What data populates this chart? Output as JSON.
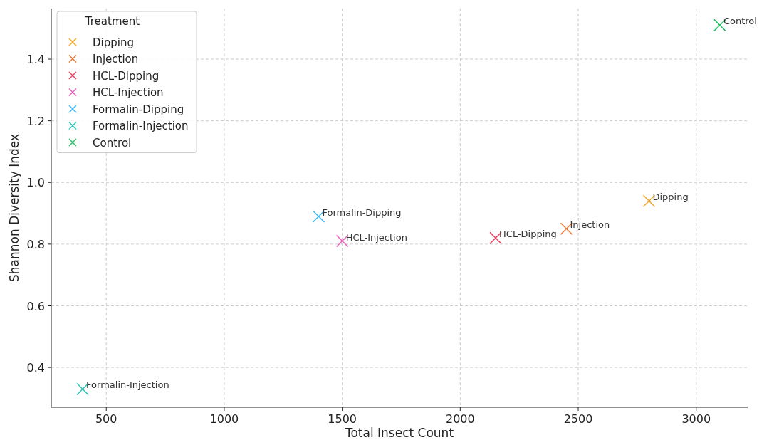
{
  "chart_data": {
    "type": "scatter",
    "xlabel": "Total Insect Count",
    "ylabel": "Shannon Diversity Index",
    "legend_title": "Treatment",
    "legend": "top left",
    "grid": true,
    "marker": "cross",
    "xlim": [
      267,
      3218
    ],
    "xticks": [
      500,
      1000,
      1500,
      2000,
      2500,
      3000
    ],
    "ylim": [
      0.271,
      1.564
    ],
    "yticks": [
      0.4,
      0.6,
      0.8,
      {
        "value": 1,
        "label": "1.0"
      },
      1.2,
      1.4
    ],
    "series": [
      {
        "name": "Dipping",
        "color": "#f5a623",
        "x": [
          2800
        ],
        "values": [
          0.94
        ]
      },
      {
        "name": "Injection",
        "color": "#f07838",
        "x": [
          2450
        ],
        "values": [
          0.85
        ]
      },
      {
        "name": "HCL-Dipping",
        "color": "#ee3d5d",
        "x": [
          2150
        ],
        "values": [
          0.82
        ]
      },
      {
        "name": "HCL-Injection",
        "color": "#f05cc0",
        "x": [
          1500
        ],
        "values": [
          0.81
        ]
      },
      {
        "name": "Formalin-Dipping",
        "color": "#3cb8f5",
        "x": [
          1400
        ],
        "values": [
          0.89
        ]
      },
      {
        "name": "Formalin-Injection",
        "color": "#26c6b8",
        "x": [
          400
        ],
        "values": [
          0.33
        ]
      },
      {
        "name": "Control",
        "color": "#22c060",
        "x": [
          3100
        ],
        "values": [
          1.51
        ]
      }
    ],
    "annotations": [
      {
        "text": "Dipping",
        "x": 2800,
        "y": 0.94
      },
      {
        "text": "Injection",
        "x": 2450,
        "y": 0.85
      },
      {
        "text": "HCL-Dipping",
        "x": 2150,
        "y": 0.82
      },
      {
        "text": "HCL-Injection",
        "x": 1500,
        "y": 0.81
      },
      {
        "text": "Formalin-Dipping",
        "x": 1400,
        "y": 0.89
      },
      {
        "text": "Formalin-Injection",
        "x": 400,
        "y": 0.33
      },
      {
        "text": "Control",
        "x": 3100,
        "y": 1.51
      }
    ]
  }
}
